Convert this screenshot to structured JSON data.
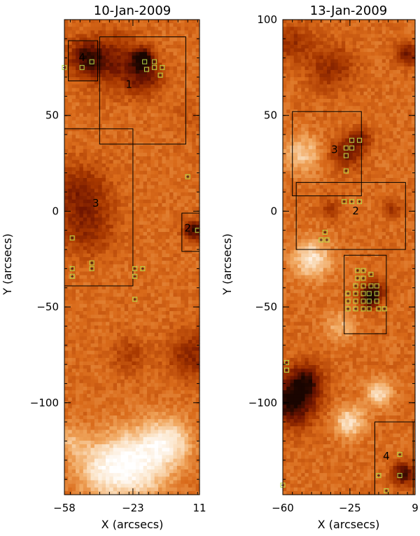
{
  "chart_data": [
    {
      "type": "heatmap",
      "title": "10-Jan-2009",
      "xlabel": "X (arcsecs)",
      "ylabel": "Y (arcsecs)",
      "xlim": [
        -58,
        11
      ],
      "ylim": [
        -148,
        100
      ],
      "xticks": [
        -58,
        -23,
        11
      ],
      "xtick_labels": [
        "−58",
        "−23",
        "11"
      ],
      "yticks": [
        50,
        0,
        -50,
        -100
      ],
      "ytick_labels": [
        "50",
        "0",
        "−50",
        "−100"
      ],
      "colormap": [
        "#1a0500",
        "#6e1400",
        "#a83800",
        "#d96a1a",
        "#f0a55c",
        "#fbe2c4",
        "#ffffff"
      ],
      "features": [
        {
          "x": -47,
          "y": 80,
          "r": 9,
          "v": 0.12
        },
        {
          "x": -32,
          "y": 78,
          "r": 14,
          "v": 0.22
        },
        {
          "x": -18,
          "y": 80,
          "r": 5,
          "v": 0.02
        },
        {
          "x": -17,
          "y": 70,
          "r": 9,
          "v": 0.2
        },
        {
          "x": -50,
          "y": 10,
          "r": 15,
          "v": 0.25
        },
        {
          "x": -46,
          "y": -10,
          "r": 14,
          "v": 0.3
        },
        {
          "x": 8,
          "y": -10,
          "r": 5,
          "v": 0.05
        },
        {
          "x": 7,
          "y": -75,
          "r": 12,
          "v": 0.25
        },
        {
          "x": -25,
          "y": -75,
          "r": 9,
          "v": 0.35
        },
        {
          "x": -22,
          "y": -132,
          "r": 18,
          "v": 0.95
        },
        {
          "x": -40,
          "y": -135,
          "r": 14,
          "v": 0.75
        },
        {
          "x": -5,
          "y": -120,
          "r": 12,
          "v": 0.82
        },
        {
          "x": -55,
          "y": -120,
          "r": 9,
          "v": 0.68
        },
        {
          "x": 5,
          "y": 50,
          "r": 10,
          "v": 0.45
        }
      ],
      "boxes": [
        {
          "label": "1",
          "x0": -40,
          "x1": 4,
          "y0": 35,
          "y1": 91,
          "lx": -25,
          "ly": 66
        },
        {
          "label": "3",
          "x0": -58,
          "x1": -23,
          "y0": -39,
          "y1": 43,
          "lx": -42,
          "ly": 4
        },
        {
          "label": "4",
          "x0": -56,
          "x1": -41,
          "y0": 68,
          "y1": 89,
          "lx": -49,
          "ly": 80
        },
        {
          "label": "2",
          "x0": 2,
          "x1": 11,
          "y0": -21,
          "y1": -1,
          "lx": 5,
          "ly": -9
        }
      ],
      "markers": [
        [
          -58,
          75
        ],
        [
          -44,
          78
        ],
        [
          -49,
          75
        ],
        [
          -17,
          78
        ],
        [
          -12,
          78
        ],
        [
          -12,
          75
        ],
        [
          -8,
          75
        ],
        [
          -16,
          74
        ],
        [
          -9,
          71
        ],
        [
          5,
          18
        ],
        [
          -54,
          -14
        ],
        [
          -54,
          -30
        ],
        [
          -54,
          -34
        ],
        [
          -44,
          -27
        ],
        [
          -44,
          -30
        ],
        [
          -22,
          -30
        ],
        [
          -22,
          -34
        ],
        [
          -18,
          -30
        ],
        [
          -22,
          -46
        ],
        [
          10,
          -10
        ]
      ]
    },
    {
      "type": "heatmap",
      "title": "13-Jan-2009",
      "xlabel": "X (arcsecs)",
      "ylabel": "Y (arcsecs)",
      "xlim": [
        -60,
        9
      ],
      "ylim": [
        -148,
        100
      ],
      "xticks": [
        -60,
        -25,
        9
      ],
      "xtick_labels": [
        "−60",
        "−25",
        "9"
      ],
      "yticks": [
        100,
        50,
        0,
        -50,
        -100
      ],
      "ytick_labels": [
        "100",
        "50",
        "0",
        "−50",
        "−100"
      ],
      "colormap": [
        "#1a0500",
        "#6e1400",
        "#a83800",
        "#d96a1a",
        "#f0a55c",
        "#fbe2c4",
        "#ffffff"
      ],
      "features": [
        {
          "x": -55,
          "y": -100,
          "r": 12,
          "v": 0.0
        },
        {
          "x": -48,
          "y": -88,
          "r": 9,
          "v": 0.12
        },
        {
          "x": -55,
          "y": 88,
          "r": 10,
          "v": 0.3
        },
        {
          "x": -35,
          "y": 75,
          "r": 12,
          "v": 0.28
        },
        {
          "x": 5,
          "y": 82,
          "r": 6,
          "v": 0.18
        },
        {
          "x": -27,
          "y": 30,
          "r": 8,
          "v": 0.2
        },
        {
          "x": -20,
          "y": 38,
          "r": 6,
          "v": 0.25
        },
        {
          "x": -13,
          "y": -42,
          "r": 6,
          "v": 0.08
        },
        {
          "x": -15,
          "y": -47,
          "r": 5,
          "v": 0.2
        },
        {
          "x": 3,
          "y": -137,
          "r": 6,
          "v": 0.08
        },
        {
          "x": -35,
          "y": 1,
          "r": 6,
          "v": 0.35
        },
        {
          "x": -3,
          "y": 1,
          "r": 5,
          "v": 0.32
        },
        {
          "x": -45,
          "y": -25,
          "r": 10,
          "v": 0.86
        },
        {
          "x": -25,
          "y": -110,
          "r": 8,
          "v": 0.85
        },
        {
          "x": -10,
          "y": -95,
          "r": 7,
          "v": 0.82
        },
        {
          "x": -50,
          "y": 30,
          "r": 10,
          "v": 0.76
        },
        {
          "x": -30,
          "y": -60,
          "r": 8,
          "v": 0.7
        }
      ],
      "boxes": [
        {
          "label": "3",
          "x0": -55,
          "x1": -19,
          "y0": 8,
          "y1": 52,
          "lx": -33,
          "ly": 32
        },
        {
          "label": "2",
          "x0": -53,
          "x1": 4,
          "y0": -20,
          "y1": 15,
          "lx": -22,
          "ly": 0
        },
        {
          "label": "",
          "x0": -28,
          "x1": -6,
          "y0": -64,
          "y1": -23,
          "lx": 0,
          "ly": 0
        },
        {
          "label": "4",
          "x0": -12,
          "x1": 8,
          "y0": -148,
          "y1": -110,
          "lx": -6,
          "ly": -128
        }
      ],
      "markers": [
        [
          -24,
          37
        ],
        [
          -20,
          37
        ],
        [
          -27,
          33
        ],
        [
          -24,
          33
        ],
        [
          -27,
          29
        ],
        [
          -27,
          21
        ],
        [
          -28,
          5
        ],
        [
          -24,
          5
        ],
        [
          -20,
          5
        ],
        [
          -38,
          -11
        ],
        [
          -40,
          -15
        ],
        [
          -37,
          -15
        ],
        [
          -21,
          -31
        ],
        [
          -21,
          -35
        ],
        [
          -18,
          -31
        ],
        [
          -14,
          -33
        ],
        [
          -26,
          -43
        ],
        [
          -22,
          -43
        ],
        [
          -18,
          -43
        ],
        [
          -15,
          -43
        ],
        [
          -11,
          -43
        ],
        [
          -22,
          -39
        ],
        [
          -18,
          -39
        ],
        [
          -14,
          -39
        ],
        [
          -11,
          -39
        ],
        [
          -26,
          -47
        ],
        [
          -22,
          -47
        ],
        [
          -18,
          -47
        ],
        [
          -15,
          -47
        ],
        [
          -11,
          -47
        ],
        [
          -26,
          -51
        ],
        [
          -22,
          -51
        ],
        [
          -18,
          -51
        ],
        [
          -15,
          -51
        ],
        [
          -10,
          -51
        ],
        [
          -7,
          -51
        ],
        [
          -18,
          -35
        ],
        [
          -58,
          -79
        ],
        [
          -58,
          -83
        ],
        [
          1,
          -127
        ],
        [
          -10,
          -138
        ],
        [
          1,
          -138
        ],
        [
          -6,
          -146
        ],
        [
          -60,
          -143
        ]
      ]
    }
  ]
}
